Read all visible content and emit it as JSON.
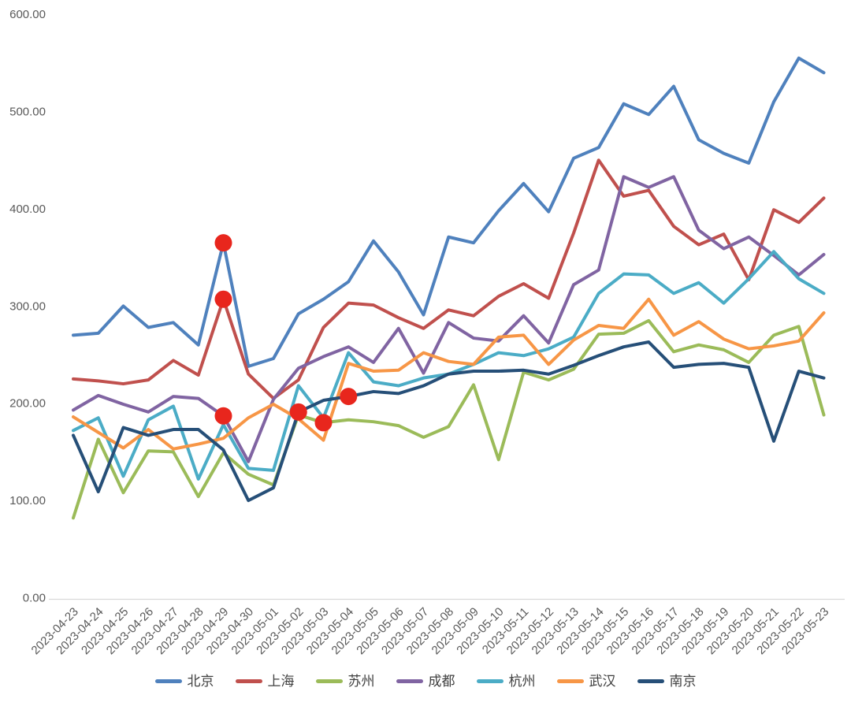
{
  "chart_data": {
    "type": "line",
    "title": "",
    "xlabel": "",
    "ylabel": "",
    "grid": false,
    "legend_position": "bottom",
    "y_axis": {
      "min": 0,
      "max": 600,
      "step": 100,
      "tick_labels": [
        "0.00",
        "100.00",
        "200.00",
        "300.00",
        "400.00",
        "500.00",
        "600.00"
      ]
    },
    "x": [
      "2023-04-23",
      "2023-04-24",
      "2023-04-25",
      "2023-04-26",
      "2023-04-27",
      "2023-04-28",
      "2023-04-29",
      "2023-04-30",
      "2023-05-01",
      "2023-05-02",
      "2023-05-03",
      "2023-05-04",
      "2023-05-05",
      "2023-05-06",
      "2023-05-07",
      "2023-05-08",
      "2023-05-09",
      "2023-05-10",
      "2023-05-11",
      "2023-05-12",
      "2023-05-13",
      "2023-05-14",
      "2023-05-15",
      "2023-05-16",
      "2023-05-17",
      "2023-05-18",
      "2023-05-19",
      "2023-05-20",
      "2023-05-21",
      "2023-05-22",
      "2023-05-23"
    ],
    "series": [
      {
        "name": "北京",
        "color": "#4F81BD",
        "values": [
          270,
          272,
          300,
          278,
          283,
          260,
          365,
          238,
          246,
          292,
          307,
          325,
          367,
          335,
          291,
          371,
          365,
          398,
          426,
          397,
          452,
          463,
          508,
          497,
          526,
          471,
          457,
          447,
          510,
          555,
          540
        ]
      },
      {
        "name": "上海",
        "color": "#C0504D",
        "values": [
          225,
          223,
          220,
          224,
          244,
          229,
          307,
          230,
          205,
          224,
          278,
          303,
          301,
          288,
          277,
          296,
          290,
          310,
          323,
          308,
          375,
          450,
          413,
          419,
          382,
          363,
          374,
          327,
          399,
          386,
          411
        ]
      },
      {
        "name": "苏州",
        "color": "#9BBB59",
        "values": [
          82,
          163,
          108,
          151,
          150,
          104,
          149,
          127,
          116,
          188,
          180,
          183,
          181,
          177,
          165,
          176,
          219,
          142,
          232,
          224,
          235,
          271,
          272,
          285,
          253,
          260,
          255,
          242,
          270,
          279,
          188
        ]
      },
      {
        "name": "成都",
        "color": "#8064A2",
        "values": [
          193,
          208,
          199,
          191,
          207,
          205,
          187,
          140,
          204,
          236,
          248,
          258,
          242,
          277,
          231,
          283,
          267,
          264,
          290,
          262,
          322,
          337,
          433,
          422,
          433,
          378,
          359,
          371,
          352,
          332,
          353
        ]
      },
      {
        "name": "杭州",
        "color": "#4BACC6",
        "values": [
          172,
          185,
          125,
          183,
          197,
          122,
          178,
          133,
          131,
          218,
          185,
          252,
          222,
          218,
          226,
          230,
          240,
          252,
          249,
          256,
          268,
          313,
          333,
          332,
          313,
          324,
          303,
          328,
          356,
          328,
          313
        ]
      },
      {
        "name": "武汉",
        "color": "#F79646",
        "values": [
          186,
          170,
          154,
          173,
          153,
          158,
          164,
          185,
          199,
          184,
          162,
          241,
          233,
          234,
          252,
          243,
          240,
          268,
          270,
          240,
          265,
          280,
          277,
          307,
          270,
          284,
          266,
          256,
          259,
          264,
          293
        ]
      },
      {
        "name": "南京",
        "color": "#264F78",
        "values": [
          167,
          109,
          175,
          167,
          173,
          173,
          152,
          100,
          113,
          191,
          203,
          207,
          212,
          210,
          218,
          230,
          233,
          233,
          234,
          230,
          239,
          249,
          258,
          263,
          237,
          240,
          241,
          237,
          161,
          233,
          226
        ]
      }
    ],
    "anomaly_marker_color": "#E8261D",
    "anomalies": [
      {
        "date": "2023-04-29",
        "series": "北京",
        "value": 365
      },
      {
        "date": "2023-04-29",
        "series": "上海",
        "value": 307
      },
      {
        "date": "2023-04-29",
        "series": "成都",
        "value": 187
      },
      {
        "date": "2023-05-02",
        "series": "南京",
        "value": 191
      },
      {
        "date": "2023-05-03",
        "series": "苏州",
        "value": 180
      },
      {
        "date": "2023-05-04",
        "series": "南京",
        "value": 207
      }
    ]
  }
}
